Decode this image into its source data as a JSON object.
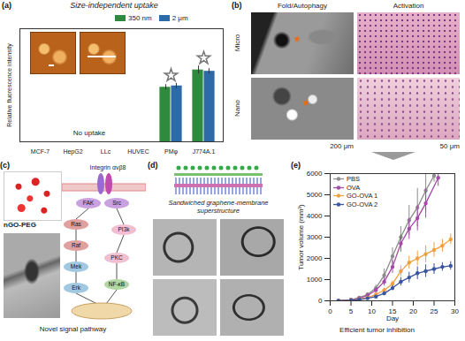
{
  "chart_data": [
    {
      "type": "bar",
      "title": "Size-independent uptake",
      "y_label": "Relative fluorescence intensity",
      "categories": [
        "MCF-7",
        "HepG2",
        "LLc",
        "HUVEC",
        "PMφ",
        "J774A.1"
      ],
      "series": [
        {
          "name": "350 nm",
          "color": "#2e8b3e",
          "values": [
            0,
            0,
            0,
            0,
            41,
            54
          ],
          "errors": [
            0,
            0,
            0,
            0,
            2,
            3
          ]
        },
        {
          "name": "2 μm",
          "color": "#2d6aa8",
          "values": [
            0,
            0,
            0,
            0,
            42,
            53
          ],
          "errors": [
            0,
            0,
            0,
            0,
            2,
            2
          ]
        }
      ],
      "ylim": [
        0,
        85
      ],
      "tick_labels": "x",
      "legend": "top",
      "annotations": [
        "No uptake"
      ]
    },
    {
      "type": "line",
      "x_label": "Day",
      "y_label": "Tumor volume (mm³)",
      "caption": "Efficient tumor inhibition",
      "marker": "circle",
      "legend": "top-left",
      "xlim": [
        0,
        30
      ],
      "xticks": [
        0,
        5,
        10,
        15,
        20,
        25,
        30
      ],
      "ylim": [
        0,
        6000
      ],
      "yticks": [
        0,
        1000,
        2000,
        3000,
        4000,
        5000,
        6000
      ],
      "series": [
        {
          "name": "PBS",
          "color": "#8c8c8c",
          "x": [
            2,
            5,
            7,
            9,
            11,
            13,
            15,
            17,
            19,
            21,
            23,
            25
          ],
          "values": [
            0,
            50,
            150,
            300,
            600,
            1200,
            2100,
            3000,
            3800,
            4400,
            5200,
            5900
          ],
          "errors": [
            0,
            20,
            40,
            80,
            150,
            300,
            400,
            500,
            700,
            900,
            1000,
            300
          ]
        },
        {
          "name": "OVA",
          "color": "#a44aa8",
          "x": [
            2,
            5,
            7,
            9,
            11,
            13,
            15,
            17,
            19,
            21,
            23,
            26
          ],
          "values": [
            0,
            40,
            120,
            250,
            500,
            900,
            1600,
            2700,
            3400,
            3900,
            4600,
            5800
          ],
          "errors": [
            0,
            20,
            40,
            60,
            100,
            200,
            300,
            400,
            500,
            600,
            700,
            400
          ]
        },
        {
          "name": "GO-OVA 1",
          "color": "#f0a040",
          "x": [
            2,
            5,
            7,
            9,
            11,
            13,
            15,
            17,
            19,
            21,
            23,
            25,
            27,
            29
          ],
          "values": [
            0,
            30,
            80,
            150,
            300,
            500,
            800,
            1400,
            1800,
            2000,
            2200,
            2400,
            2600,
            2900
          ],
          "errors": [
            0,
            10,
            20,
            40,
            60,
            100,
            150,
            250,
            300,
            350,
            400,
            350,
            300,
            250
          ]
        },
        {
          "name": "GO-OVA 2",
          "color": "#3a55a0",
          "x": [
            2,
            5,
            7,
            9,
            11,
            13,
            15,
            17,
            19,
            21,
            23,
            25,
            27,
            29
          ],
          "values": [
            0,
            20,
            60,
            120,
            200,
            350,
            600,
            900,
            1100,
            1300,
            1400,
            1500,
            1600,
            1650
          ],
          "errors": [
            0,
            10,
            20,
            30,
            50,
            80,
            120,
            200,
            250,
            300,
            300,
            250,
            200,
            200
          ]
        }
      ]
    }
  ],
  "panel_labels": [
    "(a)",
    "(b)",
    "(c)",
    "(d)",
    "(e)"
  ],
  "panel_b": {
    "column_titles": [
      "Fold/Autophagy",
      "Activation"
    ],
    "row_titles": [
      "Micro",
      "Nano"
    ],
    "scale_bars": [
      "200 μm",
      "50 μm"
    ]
  },
  "panel_c": {
    "receptor": "Integrin αvβ8",
    "inset_label": "nGO-PEG",
    "nodes": [
      "FAK",
      "Src",
      "Ras",
      "Raf",
      "Mek",
      "Erk",
      "PI3k",
      "PKC",
      "NF-κB"
    ],
    "caption": "Novel signal pathway"
  },
  "panel_d": {
    "title": "Sandwiched graphene-membrane superstructure"
  }
}
